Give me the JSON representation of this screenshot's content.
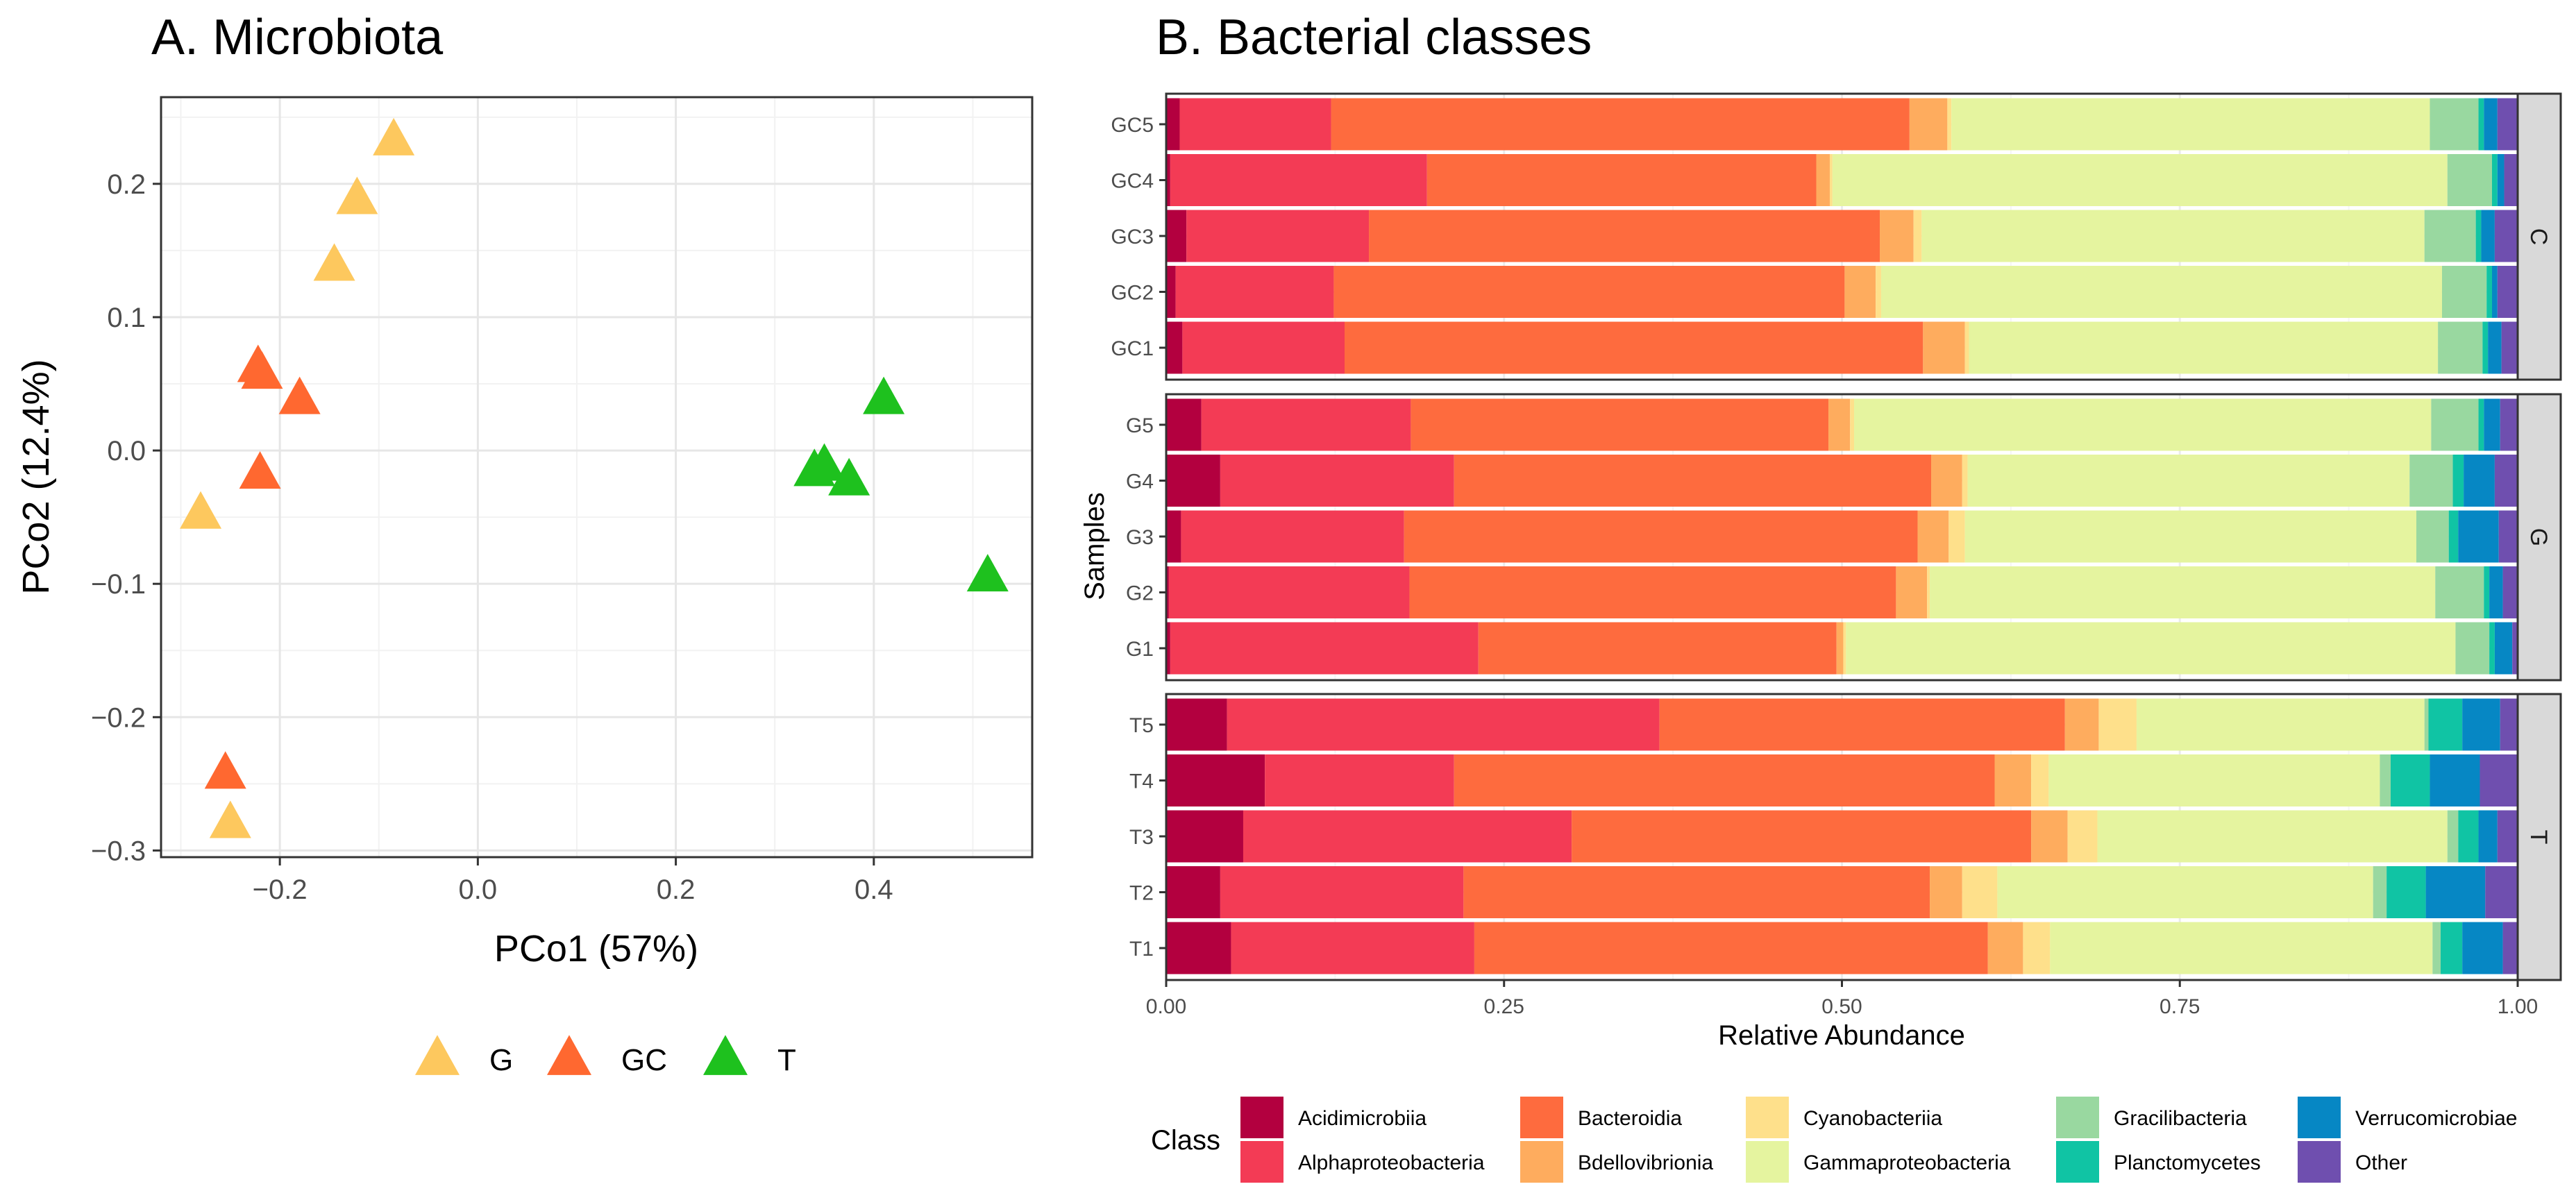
{
  "chart_data": [
    {
      "type": "scatter",
      "title": "A. Microbiota",
      "xlabel": "PCo1 (57%)",
      "ylabel": "PCo2 (12.4%)",
      "xlim": [
        -0.32,
        0.56
      ],
      "ylim": [
        -0.305,
        0.265
      ],
      "xticks": [
        -0.2,
        0.0,
        0.2,
        0.4
      ],
      "xtick_labels": [
        "−0.2",
        "0.0",
        "0.2",
        "0.4"
      ],
      "yticks": [
        -0.3,
        -0.2,
        -0.1,
        0.0,
        0.1,
        0.2
      ],
      "ytick_labels": [
        "−0.3",
        "−0.2",
        "−0.1",
        "0.0",
        "0.1",
        "0.2"
      ],
      "grid": true,
      "legend_position": "bottom",
      "marker": "triangle",
      "series": [
        {
          "name": "G",
          "color": "#FDC85E",
          "points": [
            [
              -0.085,
              0.232
            ],
            [
              -0.122,
              0.188
            ],
            [
              -0.145,
              0.138
            ],
            [
              -0.28,
              -0.048
            ],
            [
              -0.25,
              -0.28
            ]
          ]
        },
        {
          "name": "GC",
          "color": "#FF6830",
          "points": [
            [
              -0.222,
              0.062
            ],
            [
              -0.218,
              0.057
            ],
            [
              -0.18,
              0.038
            ],
            [
              -0.22,
              -0.018
            ],
            [
              -0.255,
              -0.243
            ]
          ]
        },
        {
          "name": "T",
          "color": "#1EC11E",
          "points": [
            [
              0.41,
              0.038
            ],
            [
              0.34,
              -0.016
            ],
            [
              0.35,
              -0.012
            ],
            [
              0.375,
              -0.023
            ],
            [
              0.515,
              -0.095
            ]
          ]
        }
      ]
    },
    {
      "type": "bar",
      "orientation": "horizontal",
      "stacked": true,
      "title": "B. Bacterial classes",
      "xlabel": "Relative Abundance",
      "ylabel": "Samples",
      "xlim": [
        0,
        1
      ],
      "xticks": [
        0,
        0.25,
        0.5,
        0.75,
        1.0
      ],
      "xtick_labels": [
        "0.00",
        "0.25",
        "0.50",
        "0.75",
        "1.00"
      ],
      "legend_title": "Class",
      "legend_position": "bottom",
      "classes": [
        {
          "name": "Acidimicrobiia",
          "color": "#B3003F"
        },
        {
          "name": "Alphaproteobacteria",
          "color": "#F33B55"
        },
        {
          "name": "Bacteroidia",
          "color": "#FE6B3E"
        },
        {
          "name": "Bdellovibrionia",
          "color": "#FEAC5E"
        },
        {
          "name": "Cyanobacteriia",
          "color": "#FEE08B"
        },
        {
          "name": "Gammaproteobacteria",
          "color": "#E5F49F"
        },
        {
          "name": "Gracilibacteria",
          "color": "#99D8A0"
        },
        {
          "name": "Planctomycetes",
          "color": "#10C4A4"
        },
        {
          "name": "Verrucomicrobiae",
          "color": "#0687C4"
        },
        {
          "name": "Other",
          "color": "#6F4FAF"
        }
      ],
      "facets": [
        {
          "label": "C",
          "samples": [
            {
              "name": "GC5",
              "values": [
                0.01,
                0.112,
                0.428,
                0.028,
                0.003,
                0.354,
                0.036,
                0.004,
                0.01,
                0.015
              ]
            },
            {
              "name": "GC4",
              "values": [
                0.003,
                0.19,
                0.288,
                0.01,
                0.002,
                0.455,
                0.033,
                0.004,
                0.005,
                0.01
              ]
            },
            {
              "name": "GC3",
              "values": [
                0.015,
                0.135,
                0.378,
                0.025,
                0.006,
                0.372,
                0.038,
                0.004,
                0.01,
                0.017
              ]
            },
            {
              "name": "GC2",
              "values": [
                0.007,
                0.117,
                0.378,
                0.023,
                0.004,
                0.415,
                0.033,
                0.004,
                0.004,
                0.015
              ]
            },
            {
              "name": "GC1",
              "values": [
                0.012,
                0.12,
                0.428,
                0.031,
                0.003,
                0.347,
                0.033,
                0.004,
                0.01,
                0.012
              ]
            }
          ]
        },
        {
          "label": "G",
          "samples": [
            {
              "name": "G5",
              "values": [
                0.026,
                0.155,
                0.309,
                0.016,
                0.003,
                0.427,
                0.035,
                0.004,
                0.012,
                0.013
              ]
            },
            {
              "name": "G4",
              "values": [
                0.04,
                0.173,
                0.353,
                0.023,
                0.004,
                0.327,
                0.032,
                0.008,
                0.023,
                0.017
              ]
            },
            {
              "name": "G3",
              "values": [
                0.011,
                0.165,
                0.38,
                0.023,
                0.012,
                0.334,
                0.024,
                0.007,
                0.03,
                0.014
              ]
            },
            {
              "name": "G2",
              "values": [
                0.002,
                0.178,
                0.36,
                0.023,
                0.002,
                0.374,
                0.036,
                0.004,
                0.01,
                0.011
              ]
            },
            {
              "name": "G1",
              "values": [
                0.003,
                0.228,
                0.265,
                0.005,
                0.002,
                0.451,
                0.025,
                0.004,
                0.013,
                0.004
              ]
            }
          ]
        },
        {
          "label": "T",
          "samples": [
            {
              "name": "T5",
              "values": [
                0.045,
                0.32,
                0.3,
                0.025,
                0.028,
                0.213,
                0.003,
                0.025,
                0.028,
                0.013
              ]
            },
            {
              "name": "T4",
              "values": [
                0.073,
                0.14,
                0.4,
                0.027,
                0.013,
                0.245,
                0.008,
                0.029,
                0.037,
                0.028
              ]
            },
            {
              "name": "T3",
              "values": [
                0.057,
                0.243,
                0.34,
                0.027,
                0.022,
                0.259,
                0.008,
                0.015,
                0.014,
                0.015
              ]
            },
            {
              "name": "T2",
              "values": [
                0.04,
                0.18,
                0.345,
                0.024,
                0.026,
                0.278,
                0.01,
                0.029,
                0.044,
                0.024
              ]
            },
            {
              "name": "T1",
              "values": [
                0.048,
                0.18,
                0.38,
                0.026,
                0.02,
                0.283,
                0.006,
                0.016,
                0.03,
                0.011
              ]
            }
          ]
        }
      ]
    }
  ]
}
